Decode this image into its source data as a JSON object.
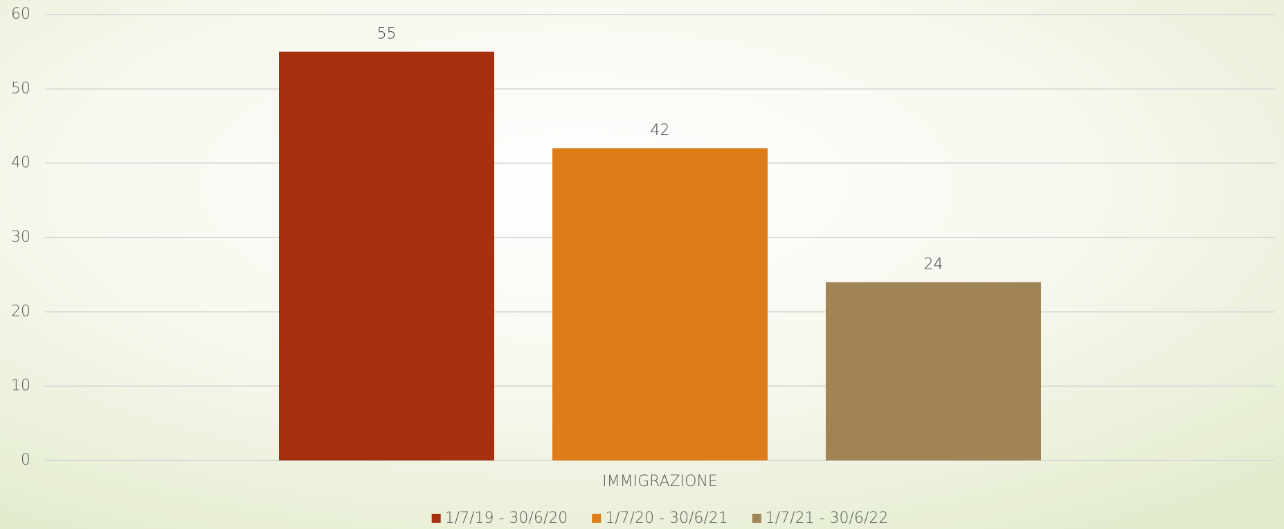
{
  "chart_data": {
    "type": "bar",
    "categories": [
      "IMMIGRAZIONE"
    ],
    "series": [
      {
        "name": "1/7/19 - 30/6/20",
        "color": "#a52f0f",
        "values": [
          55
        ]
      },
      {
        "name": "1/7/20 - 30/6/21",
        "color": "#de7c17",
        "values": [
          42
        ]
      },
      {
        "name": "1/7/21 - 30/6/22",
        "color": "#a08453",
        "values": [
          24
        ]
      }
    ],
    "ylim": [
      0,
      60
    ],
    "yticks": [
      0,
      10,
      20,
      30,
      40,
      50,
      60
    ],
    "grid": true,
    "legend": "bottom"
  }
}
